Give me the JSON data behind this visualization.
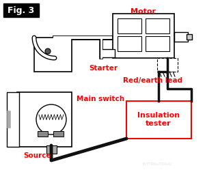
{
  "fig_label": "Fig. 3",
  "title_color": "#FF0000",
  "label_color": "#FF0000",
  "bg_color": "#FFFFFF",
  "outline_color": "#000000",
  "labels": {
    "motor": "Motor",
    "starter": "Starter",
    "red_earth": "Red/earth lead",
    "main_switch": "Main switch",
    "source": "Source",
    "insulation": "Insulation\ntester"
  },
  "watermark": "INTERNATIONAL",
  "fig_label_bg": "#000000",
  "fig_label_text": "#FFFFFF"
}
